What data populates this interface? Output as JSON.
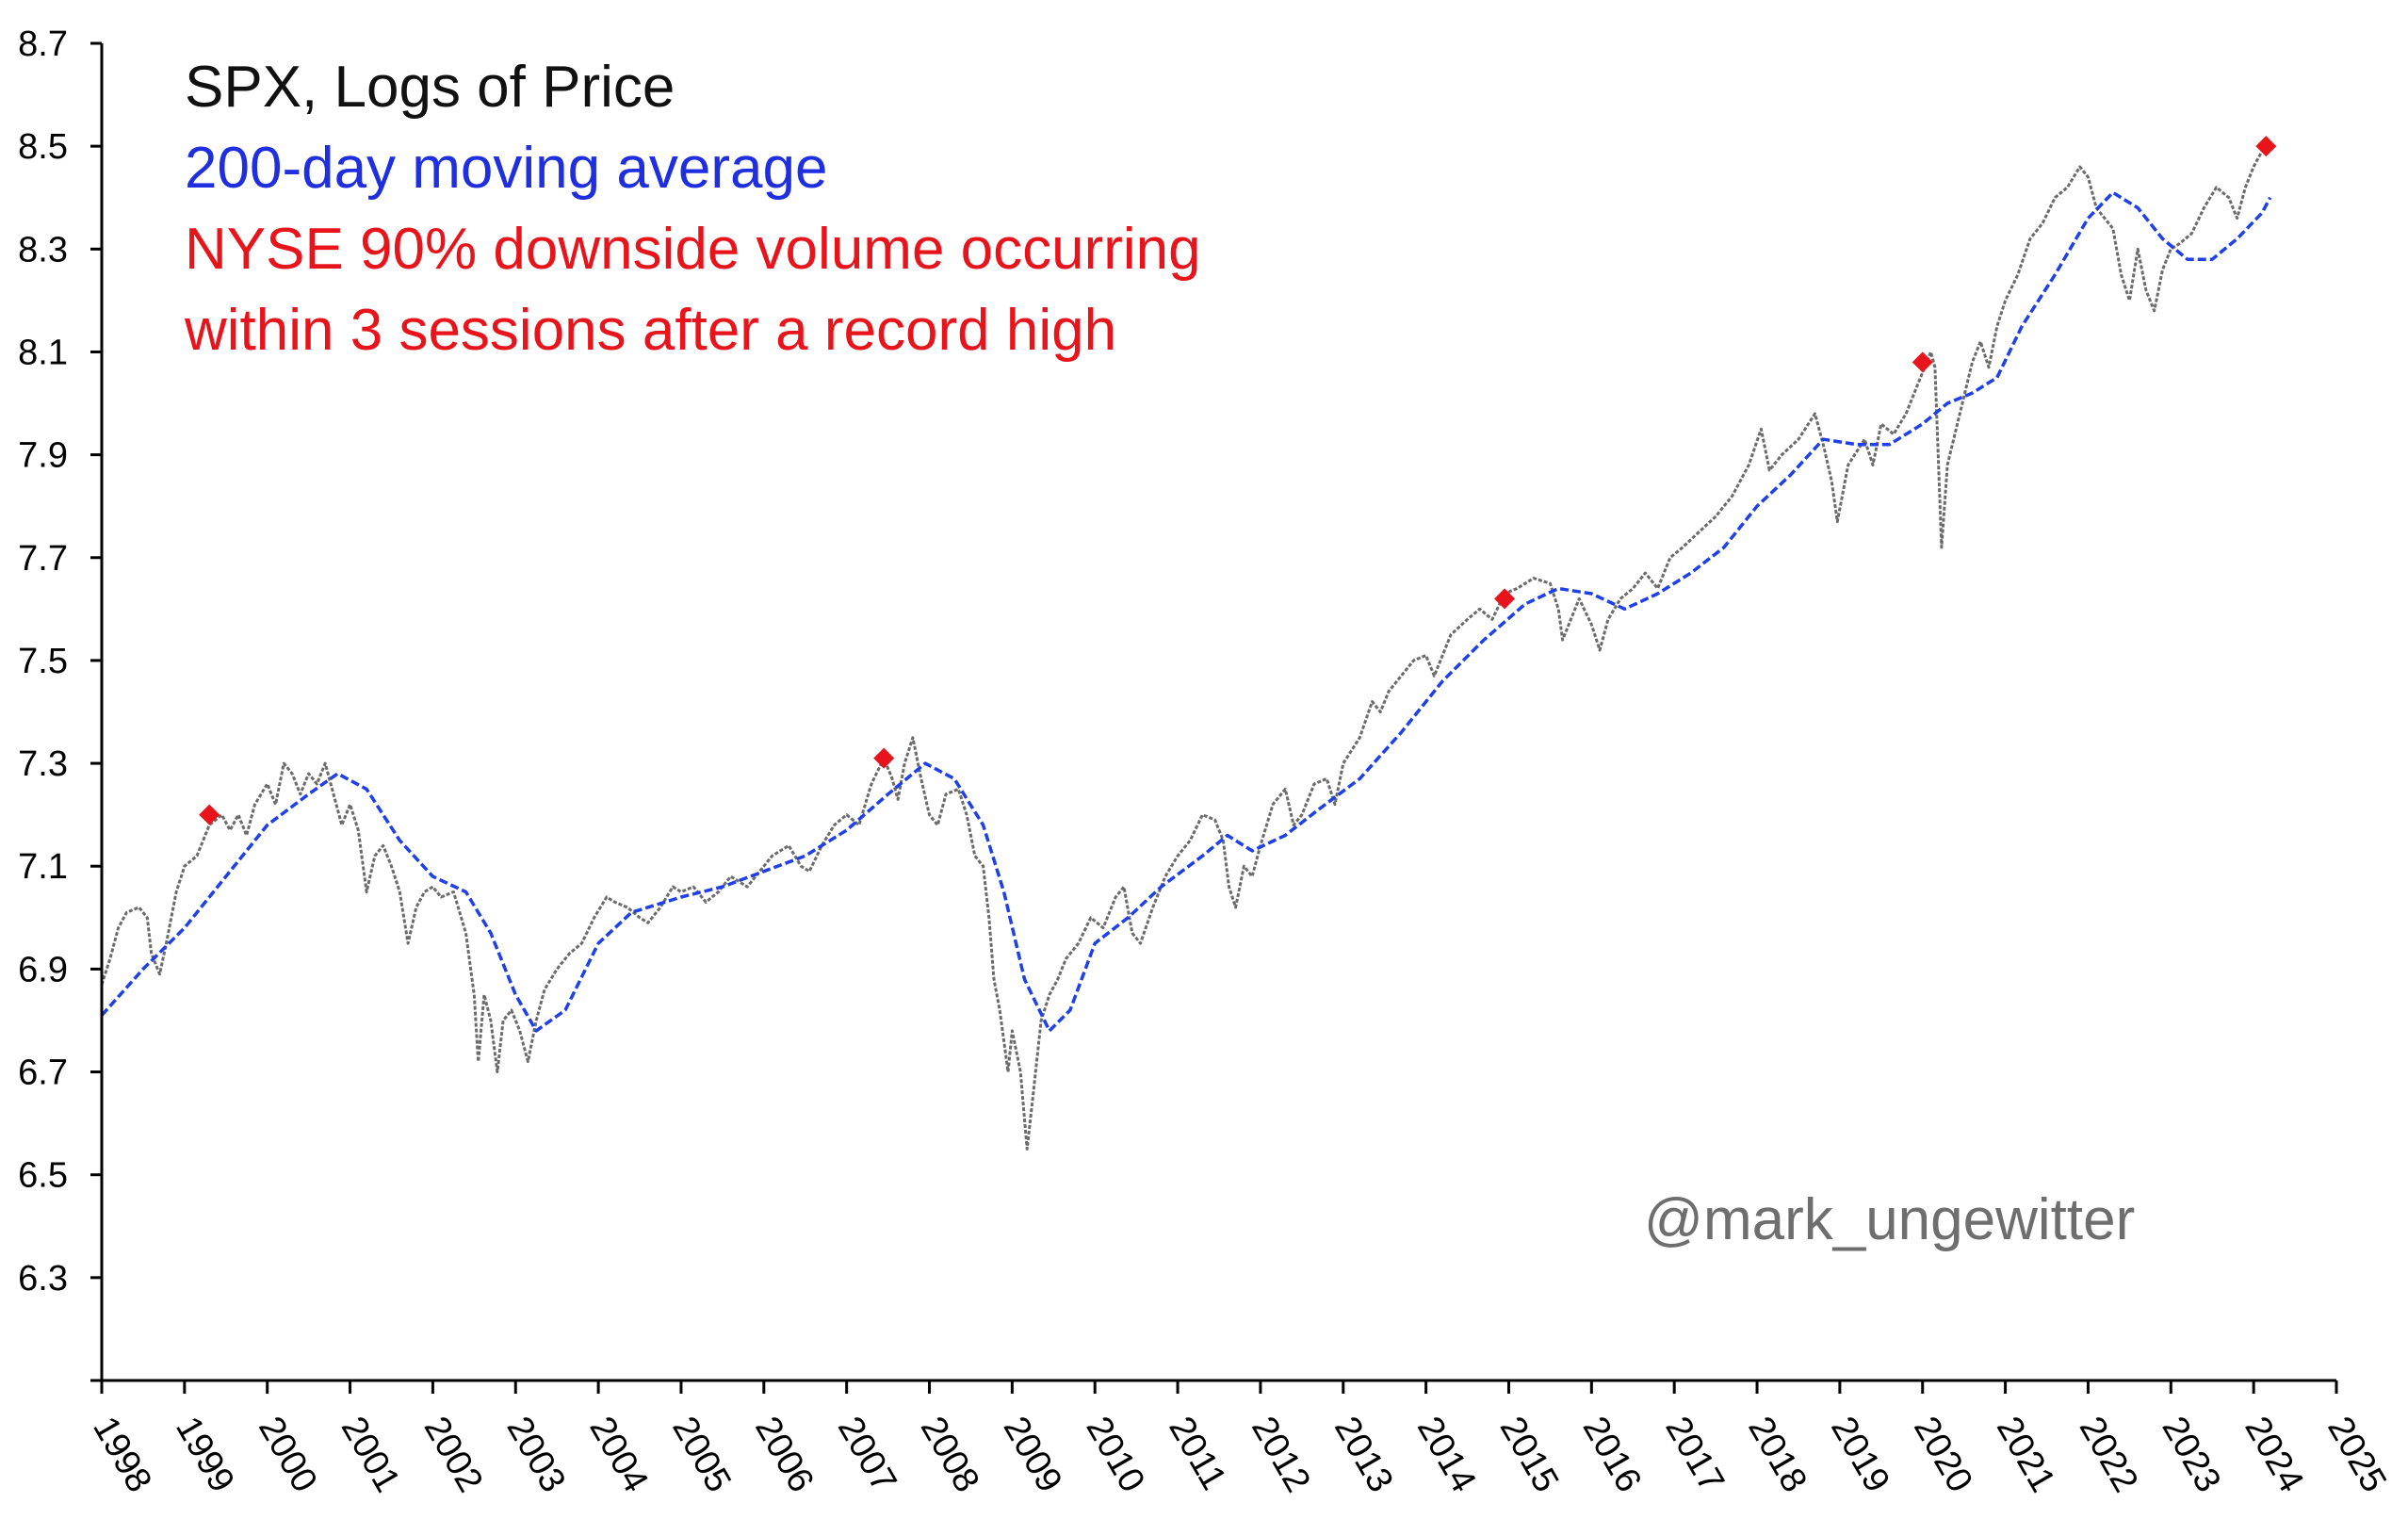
{
  "chart_data": {
    "type": "line",
    "title_lines": [
      {
        "text": "SPX, Logs of Price",
        "color": "#111111"
      },
      {
        "text": "200-day moving average",
        "color": "#1f2fe0"
      },
      {
        "text": "NYSE 90% downside volume occurring",
        "color": "#e8141c"
      },
      {
        "text": "within 3 sessions after a record high",
        "color": "#e8141c"
      }
    ],
    "watermark": "@mark_ungewitter",
    "xlim": [
      1998,
      2025
    ],
    "ylim": [
      6.1,
      8.7
    ],
    "yticks": [
      "8.7",
      "8.5",
      "8.3",
      "8.1",
      "7.9",
      "7.7",
      "7.5",
      "7.3",
      "7.1",
      "6.9",
      "6.7",
      "6.5",
      "6.3"
    ],
    "xticks": [
      "1998",
      "1999",
      "2000",
      "2001",
      "2002",
      "2003",
      "2004",
      "2005",
      "2006",
      "2007",
      "2008",
      "2009",
      "2010",
      "2011",
      "2012",
      "2013",
      "2014",
      "2015",
      "2016",
      "2017",
      "2018",
      "2019",
      "2020",
      "2021",
      "2022",
      "2023",
      "2024",
      "2025"
    ],
    "series": [
      {
        "color": "#6b6b6b",
        "points": [
          [
            1998.0,
            6.87
          ],
          [
            1998.1,
            6.92
          ],
          [
            1998.2,
            6.98
          ],
          [
            1998.3,
            7.01
          ],
          [
            1998.45,
            7.02
          ],
          [
            1998.55,
            7.0
          ],
          [
            1998.6,
            6.93
          ],
          [
            1998.7,
            6.89
          ],
          [
            1998.78,
            6.95
          ],
          [
            1998.9,
            7.05
          ],
          [
            1999.0,
            7.1
          ],
          [
            1999.15,
            7.12
          ],
          [
            1999.3,
            7.18
          ],
          [
            1999.45,
            7.2
          ],
          [
            1999.55,
            7.17
          ],
          [
            1999.65,
            7.2
          ],
          [
            1999.75,
            7.16
          ],
          [
            1999.85,
            7.22
          ],
          [
            2000.0,
            7.26
          ],
          [
            2000.1,
            7.22
          ],
          [
            2000.2,
            7.3
          ],
          [
            2000.3,
            7.28
          ],
          [
            2000.4,
            7.24
          ],
          [
            2000.5,
            7.28
          ],
          [
            2000.6,
            7.26
          ],
          [
            2000.7,
            7.3
          ],
          [
            2000.8,
            7.24
          ],
          [
            2000.9,
            7.18
          ],
          [
            2001.0,
            7.22
          ],
          [
            2001.1,
            7.17
          ],
          [
            2001.2,
            7.05
          ],
          [
            2001.3,
            7.12
          ],
          [
            2001.4,
            7.14
          ],
          [
            2001.5,
            7.1
          ],
          [
            2001.6,
            7.05
          ],
          [
            2001.7,
            6.95
          ],
          [
            2001.8,
            7.02
          ],
          [
            2001.9,
            7.05
          ],
          [
            2002.0,
            7.06
          ],
          [
            2002.1,
            7.04
          ],
          [
            2002.25,
            7.05
          ],
          [
            2002.4,
            6.97
          ],
          [
            2002.5,
            6.85
          ],
          [
            2002.55,
            6.72
          ],
          [
            2002.62,
            6.85
          ],
          [
            2002.7,
            6.8
          ],
          [
            2002.78,
            6.7
          ],
          [
            2002.85,
            6.8
          ],
          [
            2002.95,
            6.82
          ],
          [
            2003.05,
            6.78
          ],
          [
            2003.15,
            6.72
          ],
          [
            2003.25,
            6.8
          ],
          [
            2003.35,
            6.86
          ],
          [
            2003.5,
            6.9
          ],
          [
            2003.65,
            6.93
          ],
          [
            2003.8,
            6.95
          ],
          [
            2003.95,
            7.0
          ],
          [
            2004.1,
            7.04
          ],
          [
            2004.2,
            7.03
          ],
          [
            2004.35,
            7.02
          ],
          [
            2004.5,
            7.0
          ],
          [
            2004.6,
            6.99
          ],
          [
            2004.75,
            7.02
          ],
          [
            2004.9,
            7.06
          ],
          [
            2005.0,
            7.05
          ],
          [
            2005.15,
            7.06
          ],
          [
            2005.3,
            7.03
          ],
          [
            2005.45,
            7.05
          ],
          [
            2005.6,
            7.08
          ],
          [
            2005.8,
            7.06
          ],
          [
            2005.95,
            7.09
          ],
          [
            2006.1,
            7.12
          ],
          [
            2006.3,
            7.14
          ],
          [
            2006.45,
            7.1
          ],
          [
            2006.55,
            7.09
          ],
          [
            2006.7,
            7.14
          ],
          [
            2006.85,
            7.18
          ],
          [
            2007.0,
            7.2
          ],
          [
            2007.15,
            7.18
          ],
          [
            2007.3,
            7.26
          ],
          [
            2007.45,
            7.31
          ],
          [
            2007.55,
            7.27
          ],
          [
            2007.62,
            7.23
          ],
          [
            2007.7,
            7.3
          ],
          [
            2007.8,
            7.35
          ],
          [
            2007.9,
            7.27
          ],
          [
            2008.0,
            7.2
          ],
          [
            2008.1,
            7.18
          ],
          [
            2008.2,
            7.24
          ],
          [
            2008.35,
            7.25
          ],
          [
            2008.45,
            7.2
          ],
          [
            2008.55,
            7.12
          ],
          [
            2008.65,
            7.1
          ],
          [
            2008.72,
            7.0
          ],
          [
            2008.78,
            6.88
          ],
          [
            2008.85,
            6.82
          ],
          [
            2008.95,
            6.7
          ],
          [
            2009.0,
            6.78
          ],
          [
            2009.1,
            6.7
          ],
          [
            2009.18,
            6.55
          ],
          [
            2009.25,
            6.65
          ],
          [
            2009.35,
            6.8
          ],
          [
            2009.45,
            6.85
          ],
          [
            2009.55,
            6.88
          ],
          [
            2009.65,
            6.92
          ],
          [
            2009.8,
            6.95
          ],
          [
            2009.95,
            7.0
          ],
          [
            2010.1,
            6.98
          ],
          [
            2010.25,
            7.04
          ],
          [
            2010.35,
            7.06
          ],
          [
            2010.45,
            6.97
          ],
          [
            2010.55,
            6.95
          ],
          [
            2010.7,
            7.02
          ],
          [
            2010.85,
            7.08
          ],
          [
            2011.0,
            7.12
          ],
          [
            2011.15,
            7.15
          ],
          [
            2011.3,
            7.2
          ],
          [
            2011.45,
            7.19
          ],
          [
            2011.55,
            7.15
          ],
          [
            2011.62,
            7.06
          ],
          [
            2011.7,
            7.02
          ],
          [
            2011.8,
            7.1
          ],
          [
            2011.9,
            7.08
          ],
          [
            2012.0,
            7.14
          ],
          [
            2012.15,
            7.22
          ],
          [
            2012.3,
            7.25
          ],
          [
            2012.4,
            7.18
          ],
          [
            2012.5,
            7.2
          ],
          [
            2012.65,
            7.26
          ],
          [
            2012.8,
            7.27
          ],
          [
            2012.9,
            7.22
          ],
          [
            2013.0,
            7.3
          ],
          [
            2013.2,
            7.35
          ],
          [
            2013.35,
            7.42
          ],
          [
            2013.45,
            7.4
          ],
          [
            2013.55,
            7.44
          ],
          [
            2013.7,
            7.47
          ],
          [
            2013.85,
            7.5
          ],
          [
            2014.0,
            7.51
          ],
          [
            2014.1,
            7.47
          ],
          [
            2014.3,
            7.55
          ],
          [
            2014.5,
            7.58
          ],
          [
            2014.65,
            7.6
          ],
          [
            2014.8,
            7.58
          ],
          [
            2014.95,
            7.63
          ],
          [
            2015.1,
            7.64
          ],
          [
            2015.3,
            7.66
          ],
          [
            2015.5,
            7.65
          ],
          [
            2015.6,
            7.6
          ],
          [
            2015.65,
            7.54
          ],
          [
            2015.75,
            7.58
          ],
          [
            2015.85,
            7.62
          ],
          [
            2016.0,
            7.57
          ],
          [
            2016.1,
            7.52
          ],
          [
            2016.2,
            7.58
          ],
          [
            2016.35,
            7.62
          ],
          [
            2016.5,
            7.64
          ],
          [
            2016.65,
            7.67
          ],
          [
            2016.8,
            7.64
          ],
          [
            2016.95,
            7.7
          ],
          [
            2017.1,
            7.72
          ],
          [
            2017.3,
            7.75
          ],
          [
            2017.5,
            7.78
          ],
          [
            2017.7,
            7.82
          ],
          [
            2017.9,
            7.88
          ],
          [
            2018.05,
            7.95
          ],
          [
            2018.15,
            7.87
          ],
          [
            2018.3,
            7.9
          ],
          [
            2018.5,
            7.93
          ],
          [
            2018.7,
            7.98
          ],
          [
            2018.8,
            7.92
          ],
          [
            2018.9,
            7.85
          ],
          [
            2018.97,
            7.77
          ],
          [
            2019.1,
            7.88
          ],
          [
            2019.3,
            7.93
          ],
          [
            2019.4,
            7.88
          ],
          [
            2019.5,
            7.96
          ],
          [
            2019.65,
            7.94
          ],
          [
            2019.8,
            7.98
          ],
          [
            2019.95,
            8.04
          ],
          [
            2020.1,
            8.1
          ],
          [
            2020.15,
            8.07
          ],
          [
            2020.2,
            7.85
          ],
          [
            2020.23,
            7.72
          ],
          [
            2020.3,
            7.88
          ],
          [
            2020.45,
            7.98
          ],
          [
            2020.6,
            8.08
          ],
          [
            2020.7,
            8.12
          ],
          [
            2020.8,
            8.07
          ],
          [
            2020.9,
            8.15
          ],
          [
            2021.0,
            8.2
          ],
          [
            2021.15,
            8.25
          ],
          [
            2021.3,
            8.32
          ],
          [
            2021.45,
            8.35
          ],
          [
            2021.6,
            8.4
          ],
          [
            2021.75,
            8.42
          ],
          [
            2021.9,
            8.46
          ],
          [
            2022.0,
            8.44
          ],
          [
            2022.1,
            8.38
          ],
          [
            2022.2,
            8.36
          ],
          [
            2022.3,
            8.34
          ],
          [
            2022.4,
            8.25
          ],
          [
            2022.5,
            8.2
          ],
          [
            2022.6,
            8.3
          ],
          [
            2022.7,
            8.22
          ],
          [
            2022.8,
            8.18
          ],
          [
            2022.9,
            8.26
          ],
          [
            2023.0,
            8.3
          ],
          [
            2023.1,
            8.31
          ],
          [
            2023.25,
            8.33
          ],
          [
            2023.4,
            8.38
          ],
          [
            2023.55,
            8.42
          ],
          [
            2023.7,
            8.4
          ],
          [
            2023.8,
            8.36
          ],
          [
            2023.9,
            8.42
          ],
          [
            2024.0,
            8.46
          ],
          [
            2024.1,
            8.49
          ],
          [
            2024.15,
            8.5
          ]
        ]
      },
      {
        "color": "#1f3fe8",
        "points": [
          [
            1998.0,
            6.81
          ],
          [
            1998.5,
            6.9
          ],
          [
            1999.0,
            6.98
          ],
          [
            1999.5,
            7.08
          ],
          [
            2000.0,
            7.18
          ],
          [
            2000.5,
            7.24
          ],
          [
            2000.85,
            7.28
          ],
          [
            2001.2,
            7.25
          ],
          [
            2001.6,
            7.15
          ],
          [
            2002.0,
            7.08
          ],
          [
            2002.4,
            7.05
          ],
          [
            2002.7,
            6.97
          ],
          [
            2003.0,
            6.85
          ],
          [
            2003.25,
            6.78
          ],
          [
            2003.6,
            6.82
          ],
          [
            2004.0,
            6.95
          ],
          [
            2004.4,
            7.01
          ],
          [
            2005.0,
            7.04
          ],
          [
            2005.5,
            7.06
          ],
          [
            2006.0,
            7.09
          ],
          [
            2006.5,
            7.12
          ],
          [
            2007.0,
            7.17
          ],
          [
            2007.5,
            7.24
          ],
          [
            2007.95,
            7.3
          ],
          [
            2008.3,
            7.27
          ],
          [
            2008.65,
            7.18
          ],
          [
            2008.9,
            7.05
          ],
          [
            2009.15,
            6.88
          ],
          [
            2009.45,
            6.78
          ],
          [
            2009.7,
            6.82
          ],
          [
            2010.0,
            6.95
          ],
          [
            2010.4,
            7.0
          ],
          [
            2010.8,
            7.06
          ],
          [
            2011.3,
            7.12
          ],
          [
            2011.6,
            7.16
          ],
          [
            2011.9,
            7.13
          ],
          [
            2012.3,
            7.16
          ],
          [
            2012.7,
            7.21
          ],
          [
            2013.2,
            7.27
          ],
          [
            2013.7,
            7.36
          ],
          [
            2014.2,
            7.46
          ],
          [
            2014.7,
            7.54
          ],
          [
            2015.2,
            7.61
          ],
          [
            2015.6,
            7.64
          ],
          [
            2016.0,
            7.63
          ],
          [
            2016.4,
            7.6
          ],
          [
            2016.8,
            7.63
          ],
          [
            2017.2,
            7.67
          ],
          [
            2017.6,
            7.72
          ],
          [
            2018.0,
            7.8
          ],
          [
            2018.4,
            7.86
          ],
          [
            2018.8,
            7.93
          ],
          [
            2019.2,
            7.92
          ],
          [
            2019.6,
            7.92
          ],
          [
            2020.0,
            7.96
          ],
          [
            2020.3,
            8.0
          ],
          [
            2020.6,
            8.02
          ],
          [
            2020.9,
            8.05
          ],
          [
            2021.2,
            8.15
          ],
          [
            2021.6,
            8.25
          ],
          [
            2022.0,
            8.36
          ],
          [
            2022.3,
            8.41
          ],
          [
            2022.6,
            8.38
          ],
          [
            2022.9,
            8.32
          ],
          [
            2023.2,
            8.28
          ],
          [
            2023.5,
            8.28
          ],
          [
            2023.8,
            8.32
          ],
          [
            2024.1,
            8.37
          ],
          [
            2024.2,
            8.4
          ]
        ]
      }
    ],
    "markers": {
      "color": "#e8141c",
      "points": [
        [
          1999.3,
          7.2
        ],
        [
          2007.45,
          7.31
        ],
        [
          2014.95,
          7.62
        ],
        [
          2020.0,
          8.08
        ],
        [
          2024.15,
          8.5
        ]
      ]
    },
    "grid": false
  }
}
